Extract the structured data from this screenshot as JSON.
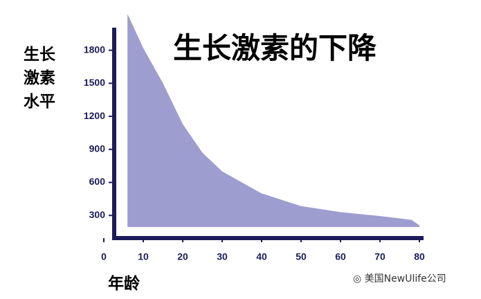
{
  "chart_data": {
    "type": "area",
    "title": "生长激素的下降",
    "y_label": "生长激素水平",
    "x_label": "年龄",
    "watermark": "美国NewUlife公司",
    "x": [
      6,
      10,
      15,
      20,
      25,
      30,
      40,
      50,
      60,
      70,
      78,
      80
    ],
    "values": [
      2130,
      1820,
      1500,
      1130,
      870,
      700,
      500,
      385,
      330,
      295,
      260,
      210
    ],
    "color": "#9d9dcf",
    "xlim": [
      0,
      80
    ],
    "xticks": [
      0,
      10,
      20,
      30,
      40,
      50,
      60,
      70,
      80
    ],
    "ylim": [
      0,
      2200
    ],
    "yticks": [
      300,
      600,
      900,
      1200,
      1500,
      1800
    ]
  }
}
